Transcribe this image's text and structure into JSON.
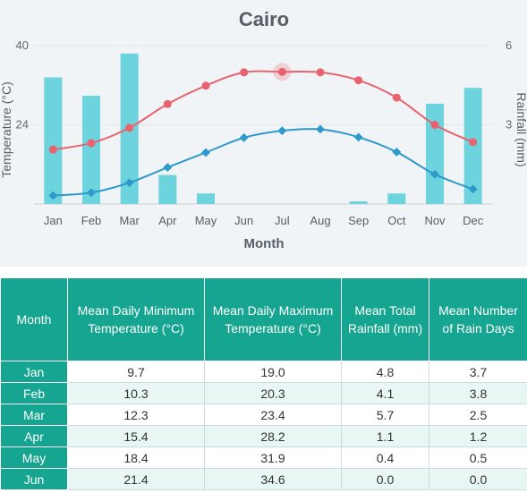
{
  "colors": {
    "panel_bg": "#f1f4f6",
    "rain_bar": "#6dd3dd",
    "max_line": "#e8636f",
    "min_line": "#2e9acb",
    "table_header": "#16a591"
  },
  "chart_data": {
    "type": "bar+line",
    "title": "Cairo",
    "xlabel": "Month",
    "ylabel_left": "Temperature (°C)",
    "ylabel_right": "Rainfall (mm)",
    "categories": [
      "Jan",
      "Feb",
      "Mar",
      "Apr",
      "May",
      "Jun",
      "Jul",
      "Aug",
      "Sep",
      "Oct",
      "Nov",
      "Dec"
    ],
    "y_left_ticks": [
      "40",
      "24"
    ],
    "y_right_ticks": [
      "6",
      "3"
    ],
    "ylim_left": [
      8,
      40
    ],
    "ylim_right": [
      0,
      6
    ],
    "series": [
      {
        "kind": "bar",
        "axis": "right",
        "values": [
          4.8,
          4.1,
          5.7,
          1.1,
          0.4,
          0.0,
          0.0,
          0.0,
          0.1,
          0.4,
          3.8,
          4.4
        ]
      },
      {
        "kind": "line",
        "axis": "left",
        "marker": "circle",
        "values": [
          19.0,
          20.3,
          23.4,
          28.2,
          31.9,
          34.6,
          34.7,
          34.6,
          33.0,
          29.5,
          24.0,
          20.5
        ]
      },
      {
        "kind": "line",
        "axis": "left",
        "marker": "diamond",
        "values": [
          9.7,
          10.3,
          12.3,
          15.4,
          18.4,
          21.4,
          22.8,
          23.1,
          21.5,
          18.5,
          14.0,
          11.0
        ]
      }
    ],
    "highlight_index": 6,
    "grid": "horizontal",
    "legend": "none"
  },
  "table": {
    "headers": [
      "Month",
      "Mean Daily Minimum Temperature (°C)",
      "Mean Daily Maximum Temperature (°C)",
      "Mean Total Rainfall (mm)",
      "Mean Number of Rain Days"
    ],
    "rows": [
      [
        "Jan",
        "9.7",
        "19.0",
        "4.8",
        "3.7"
      ],
      [
        "Feb",
        "10.3",
        "20.3",
        "4.1",
        "3.8"
      ],
      [
        "Mar",
        "12.3",
        "23.4",
        "5.7",
        "2.5"
      ],
      [
        "Apr",
        "15.4",
        "28.2",
        "1.1",
        "1.2"
      ],
      [
        "May",
        "18.4",
        "31.9",
        "0.4",
        "0.5"
      ],
      [
        "Jun",
        "21.4",
        "34.6",
        "0.0",
        "0.0"
      ]
    ]
  }
}
